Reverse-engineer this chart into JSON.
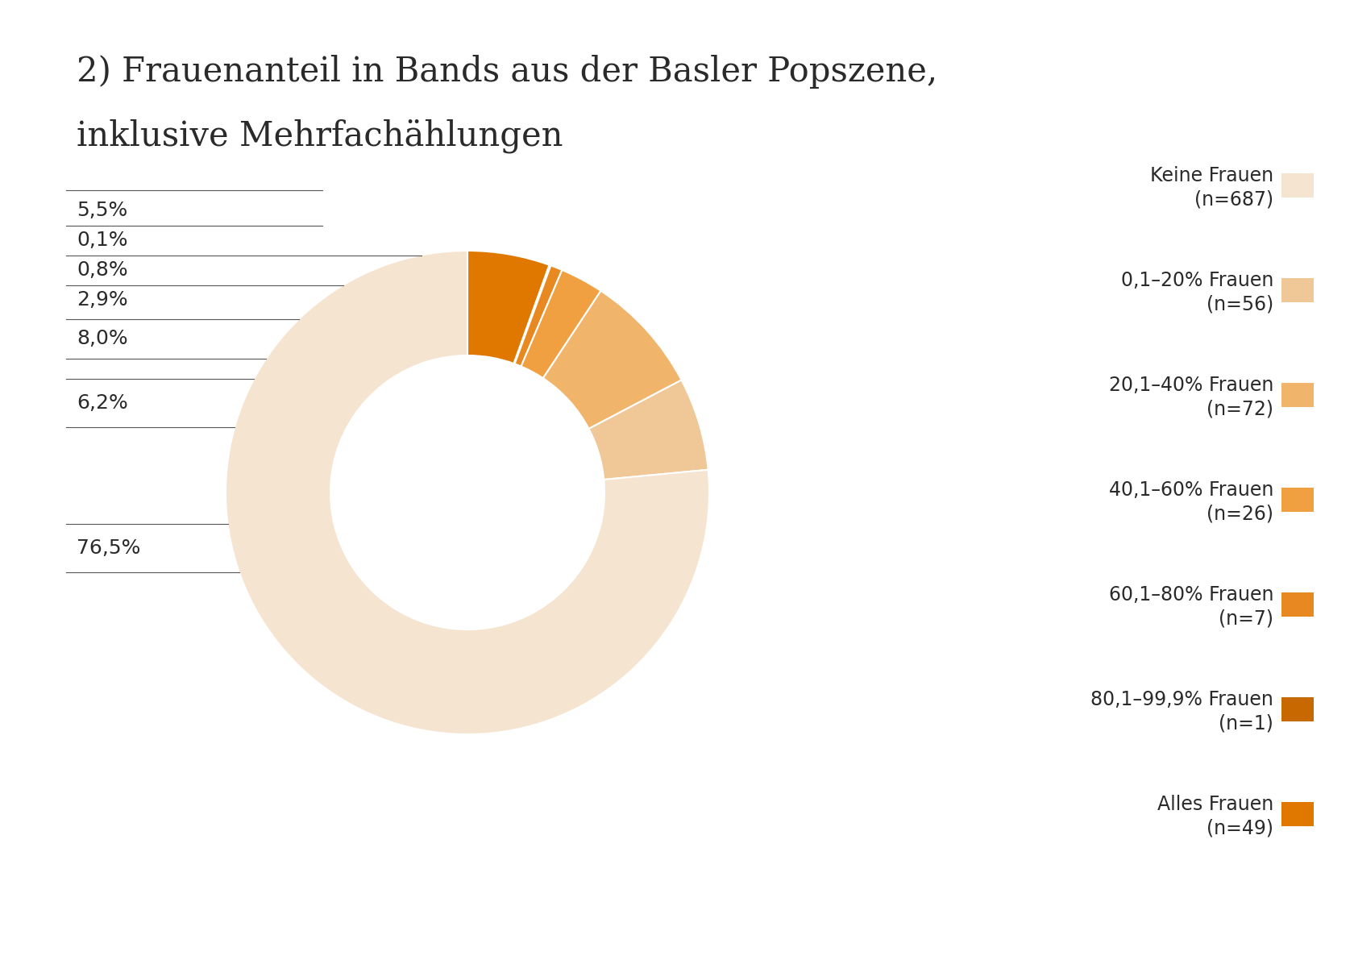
{
  "title_line1": "2) Frauenanteil in Bands aus der Basler Popszene,",
  "title_line2": "inklusive Mehrfachählungen",
  "segments": [
    {
      "label_pct": "76,5%",
      "value": 76.5,
      "color": "#f5e4d0",
      "legend_label": "Keine Frauen",
      "legend_sublabel": "(n=687)"
    },
    {
      "label_pct": "6,2%",
      "value": 6.2,
      "color": "#f0c898",
      "legend_label": "0,1–20% Frauen",
      "legend_sublabel": "(n=56)"
    },
    {
      "label_pct": "8,0%",
      "value": 8.0,
      "color": "#f0b46a",
      "legend_label": "20,1–40% Frauen",
      "legend_sublabel": "(n=72)"
    },
    {
      "label_pct": "2,9%",
      "value": 2.9,
      "color": "#f0a040",
      "legend_label": "40,1–60% Frauen",
      "legend_sublabel": "(n=26)"
    },
    {
      "label_pct": "0,8%",
      "value": 0.8,
      "color": "#e88820",
      "legend_label": "60,1–80% Frauen",
      "legend_sublabel": "(n=7)"
    },
    {
      "label_pct": "0,1%",
      "value": 0.1,
      "color": "#c86800",
      "legend_label": "80,1–99,9% Frauen",
      "legend_sublabel": "(n=1)"
    },
    {
      "label_pct": "5,5%",
      "value": 5.5,
      "color": "#e07800",
      "legend_label": "Alles Frauen",
      "legend_sublabel": "(n=49)"
    }
  ],
  "background_color": "#ffffff",
  "text_color": "#2a2a2a",
  "title_fontsize": 30,
  "label_fontsize": 18,
  "legend_fontsize": 17,
  "line_color": "#555555",
  "line_width": 0.8
}
